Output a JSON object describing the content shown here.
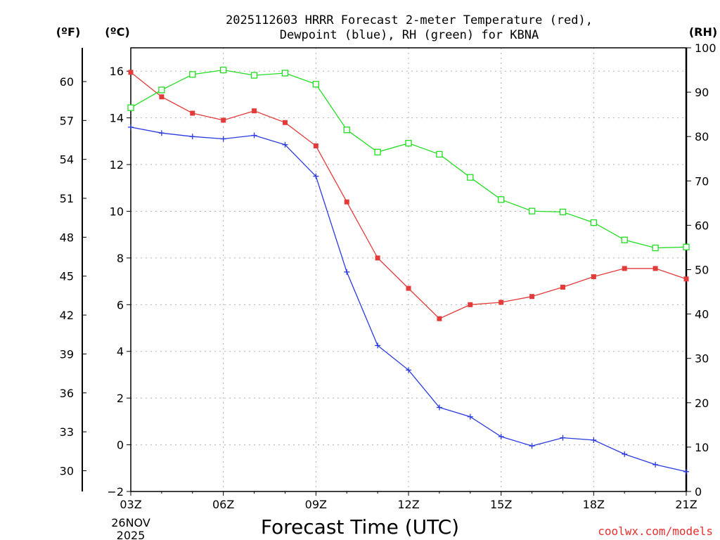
{
  "chart_data": {
    "type": "line",
    "title_line1": "2025112603 HRRR Forecast 2-meter Temperature (red),",
    "title_line2": "Dewpoint (blue), RH (green) for KBNA",
    "xlabel": "Forecast Time (UTC)",
    "x_hours": [
      3,
      4,
      5,
      6,
      7,
      8,
      9,
      10,
      11,
      12,
      13,
      14,
      15,
      16,
      17,
      18,
      19,
      20,
      21
    ],
    "x_tick_hours": [
      3,
      6,
      9,
      12,
      15,
      18,
      21
    ],
    "x_tick_labels": [
      "03Z",
      "06Z",
      "09Z",
      "12Z",
      "15Z",
      "18Z",
      "21Z"
    ],
    "date_label_line1": "26NOV",
    "date_label_line2": "2025",
    "ylim_c": [
      -2,
      17
    ],
    "yticks_c": [
      -2,
      0,
      2,
      4,
      6,
      8,
      10,
      12,
      14,
      16
    ],
    "yticks_f": [
      30,
      33,
      36,
      39,
      42,
      45,
      48,
      51,
      54,
      57,
      60
    ],
    "ylim_rh": [
      0,
      100
    ],
    "yticks_rh": [
      0,
      10,
      20,
      30,
      40,
      50,
      60,
      70,
      80,
      90,
      100
    ],
    "left_unit_f": "(ºF)",
    "left_unit_c": "(ºC)",
    "right_unit": "(RH)",
    "credit": "coolwx.com/models",
    "credit_color": "#e53030",
    "grid": true,
    "series": [
      {
        "name": "Temperature",
        "axis": "c",
        "color": "#e33a3a",
        "marker": "filled-square",
        "values": [
          15.95,
          14.9,
          14.2,
          13.9,
          14.3,
          13.8,
          12.8,
          10.4,
          8.0,
          6.7,
          5.4,
          6.0,
          6.1,
          6.35,
          6.75,
          7.2,
          7.55,
          7.55,
          7.1
        ]
      },
      {
        "name": "Dewpoint",
        "axis": "c",
        "color": "#2a3adf",
        "marker": "plus",
        "values": [
          13.6,
          13.35,
          13.2,
          13.1,
          13.25,
          12.85,
          11.5,
          7.4,
          4.25,
          3.2,
          1.6,
          1.2,
          0.35,
          -0.05,
          0.3,
          0.2,
          -0.4,
          -0.85,
          -1.15
        ]
      },
      {
        "name": "RH",
        "axis": "rh",
        "color": "#22dd22",
        "marker": "open-square",
        "values": [
          86.5,
          90.5,
          94.0,
          95.0,
          93.8,
          94.3,
          91.8,
          81.5,
          76.5,
          78.5,
          76.0,
          70.8,
          65.8,
          63.2,
          63.0,
          60.6,
          56.7,
          54.9,
          55.1
        ]
      }
    ]
  }
}
